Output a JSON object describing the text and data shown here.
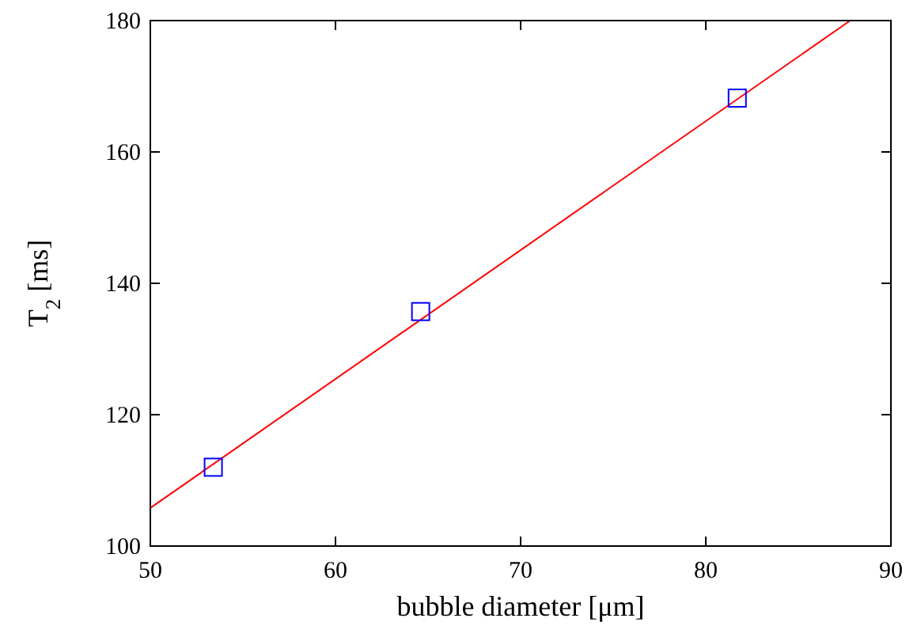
{
  "chart_data": {
    "type": "scatter",
    "xlabel": "bubble diameter [μm]",
    "ylabel": "T$_{2}$ [ms]",
    "xlim": [
      50,
      90
    ],
    "xticks": [
      50,
      60,
      70,
      80,
      90
    ],
    "ylim": [
      100,
      180
    ],
    "yticks": [
      100,
      120,
      140,
      160,
      180
    ],
    "grid": false,
    "marker": "square",
    "series": [
      {
        "color": "#0000ff",
        "x": [
          53.4,
          64.6,
          81.7
        ],
        "values": [
          112.0,
          135.7,
          168.2
        ]
      },
      {
        "type": "line",
        "color": "#ff0000",
        "x": [
          50,
          87.8
        ],
        "values": [
          105.8,
          180
        ],
        "marker": "none",
        "line_style": "solid"
      }
    ]
  }
}
